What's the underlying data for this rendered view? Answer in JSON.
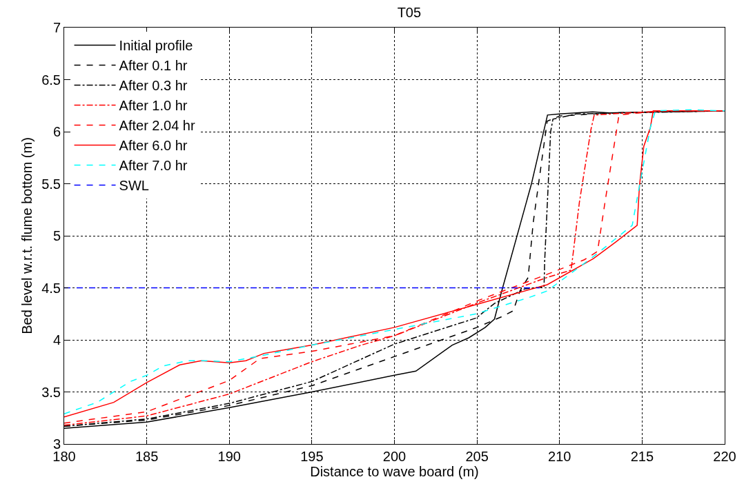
{
  "chart_data": {
    "type": "line",
    "title": "T05",
    "xlabel": "Distance to wave board (m)",
    "ylabel": "Bed level w.r.t. flume bottom (m)",
    "xlim": [
      180,
      220
    ],
    "xticks": [
      180,
      185,
      190,
      195,
      200,
      205,
      210,
      215,
      220
    ],
    "ylim": [
      3,
      7
    ],
    "yticks": [
      3,
      3.5,
      4,
      4.5,
      5,
      5.5,
      6,
      6.5,
      7
    ],
    "grid": true,
    "legend": "top left",
    "marker": "none",
    "series": [
      {
        "name": "Initial profile",
        "color": "#000000",
        "line_style": "solid",
        "x": [
          180,
          185,
          190,
          195,
          200,
          201.3,
          203.5,
          204.5,
          205.5,
          206.06,
          206.5,
          208.3,
          209.27,
          210,
          212,
          213,
          216,
          220
        ],
        "values": [
          3.15,
          3.21,
          3.35,
          3.5,
          3.66,
          3.7,
          3.95,
          4.02,
          4.12,
          4.2,
          4.47,
          5.5,
          6.16,
          6.17,
          6.19,
          6.18,
          6.19,
          6.2
        ]
      },
      {
        "name": "After 0.1 hr",
        "color": "#000000",
        "line_style": "dashed",
        "x": [
          180,
          185,
          190,
          195,
          200,
          205,
          206.6,
          207.2,
          207.6,
          208.1,
          208.4,
          209.25,
          210,
          213,
          216,
          220
        ],
        "values": [
          3.17,
          3.23,
          3.37,
          3.56,
          3.84,
          4.12,
          4.23,
          4.28,
          4.47,
          4.6,
          5.12,
          6.1,
          6.15,
          6.18,
          6.19,
          6.2
        ]
      },
      {
        "name": "After 0.3 hr",
        "color": "#000000",
        "line_style": "dashdot",
        "x": [
          180,
          185,
          190,
          195,
          200,
          204.95,
          206.06,
          207.9,
          209.06,
          209.1,
          209.46,
          209.6,
          211,
          214,
          217,
          220
        ],
        "values": [
          3.17,
          3.24,
          3.39,
          3.6,
          3.96,
          4.21,
          4.35,
          4.49,
          4.51,
          4.76,
          6.0,
          6.12,
          6.17,
          6.18,
          6.19,
          6.2
        ]
      },
      {
        "name": "After 1.0 hr",
        "color": "#ff0000",
        "line_style": "dashdot",
        "x": [
          180,
          185,
          190,
          195,
          198,
          200,
          205.1,
          209.25,
          210.7,
          211.2,
          211.9,
          212.1,
          214,
          217,
          220
        ],
        "values": [
          3.18,
          3.27,
          3.48,
          3.79,
          3.95,
          4.04,
          4.36,
          4.6,
          4.67,
          5.32,
          6.02,
          6.16,
          6.18,
          6.2,
          6.2
        ]
      },
      {
        "name": "After 2.04 hr",
        "color": "#ff0000",
        "line_style": "dashed",
        "x": [
          180,
          185,
          190,
          191.85,
          195,
          200,
          205.1,
          209.25,
          211.5,
          212.3,
          212.75,
          213.6,
          216,
          220
        ],
        "values": [
          3.2,
          3.31,
          3.61,
          3.82,
          3.89,
          4.04,
          4.38,
          4.63,
          4.77,
          4.85,
          5.32,
          6.16,
          6.2,
          6.2
        ]
      },
      {
        "name": "After 6.0 hr",
        "color": "#ff0000",
        "line_style": "solid",
        "x": [
          180,
          183,
          185,
          187,
          188.3,
          190,
          191,
          192.1,
          195,
          200,
          204.95,
          209.25,
          212.05,
          213.4,
          214.7,
          214.84,
          215.1,
          215.5,
          215.67,
          218,
          220
        ],
        "values": [
          3.26,
          3.4,
          3.59,
          3.76,
          3.8,
          3.78,
          3.8,
          3.87,
          3.95,
          4.12,
          4.34,
          4.53,
          4.78,
          4.94,
          5.1,
          5.48,
          5.86,
          6.04,
          6.2,
          6.2,
          6.2
        ]
      },
      {
        "name": "After 7.0 hr",
        "color": "#00ffff",
        "line_style": "dashed",
        "x": [
          180,
          182,
          184,
          185,
          186,
          187.5,
          188.5,
          190,
          191,
          192,
          195,
          200,
          204.95,
          208.2,
          209.25,
          212.05,
          214.4,
          214.84,
          215.5,
          215.8,
          218,
          220
        ],
        "values": [
          3.29,
          3.4,
          3.6,
          3.66,
          3.75,
          3.8,
          3.8,
          3.79,
          3.82,
          3.85,
          3.95,
          4.1,
          4.25,
          4.41,
          4.47,
          4.8,
          5.1,
          5.48,
          6.04,
          6.2,
          6.21,
          6.2
        ]
      },
      {
        "name": "SWL",
        "color": "#0000ff",
        "line_style": "dashed",
        "x": [
          180,
          208.8
        ],
        "values": [
          4.5,
          4.5
        ]
      }
    ]
  }
}
